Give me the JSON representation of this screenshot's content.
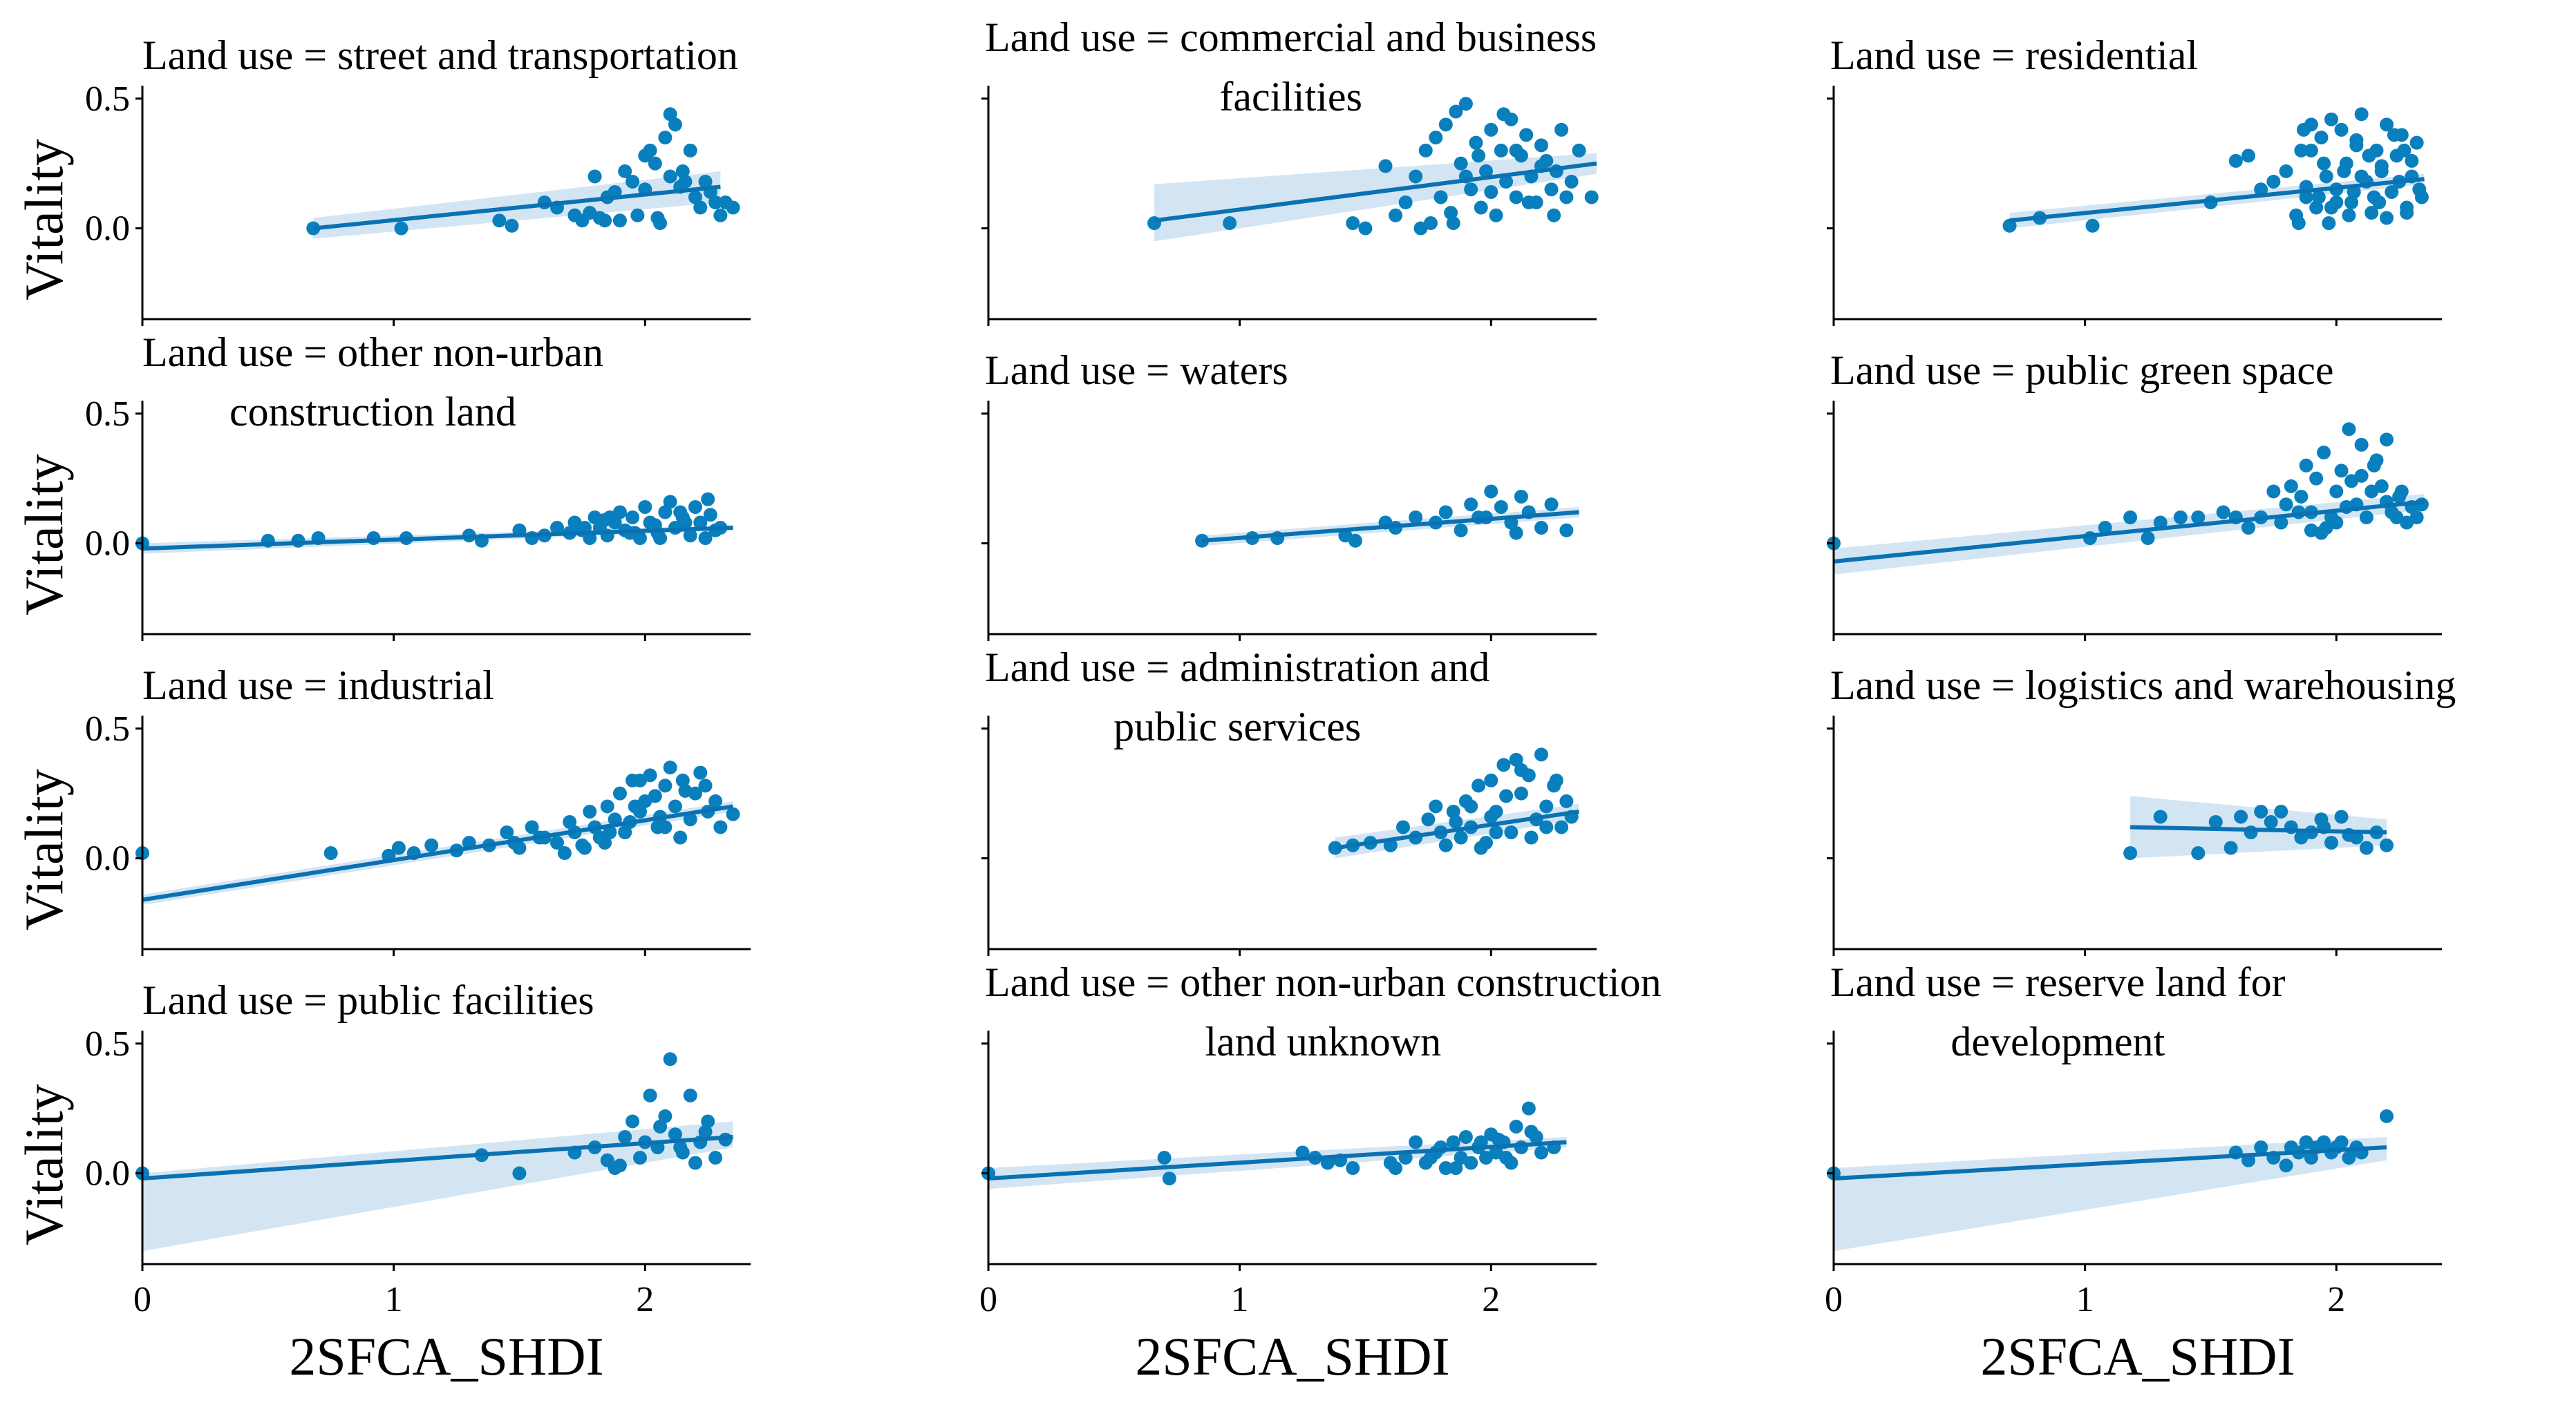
{
  "figure": {
    "xlabel": "2SFCA_SHDI",
    "ylabel": "Vitality",
    "x_ticks": [
      0,
      1,
      2
    ],
    "x_tick_labels": [
      "0",
      "1",
      "2"
    ],
    "y_ticks": [
      0.5,
      0.0
    ],
    "y_tick_labels": [
      "0.5",
      "0.0"
    ],
    "colors": {
      "points": "#0a7fbe",
      "line": "#0a72b3",
      "band": "#a7cbe8"
    }
  },
  "chart_data": [
    {
      "type": "scatter",
      "title_lines": [
        "Land use = street and transportation"
      ],
      "xlim": [
        0,
        2.42
      ],
      "ylim": [
        -0.35,
        0.55
      ],
      "fit": {
        "x0": 0.68,
        "y0": 0.0,
        "x1": 2.3,
        "y1": 0.16
      },
      "band": {
        "lo0": -0.04,
        "hi0": 0.04,
        "lo1": 0.1,
        "hi1": 0.22
      },
      "x": [
        0.68,
        1.03,
        1.42,
        1.47,
        1.6,
        1.65,
        1.72,
        1.75,
        1.8,
        1.82,
        1.85,
        1.88,
        1.9,
        1.92,
        1.95,
        1.97,
        2.0,
        2.02,
        2.04,
        2.06,
        2.08,
        2.1,
        2.12,
        2.14,
        2.16,
        2.18,
        2.2,
        2.22,
        2.24,
        2.26,
        2.28,
        2.3,
        2.32,
        2.35,
        1.78,
        1.84,
        2.0,
        2.1,
        2.15,
        2.05
      ],
      "y": [
        0.0,
        0.0,
        0.03,
        0.01,
        0.1,
        0.08,
        0.05,
        0.03,
        0.2,
        0.04,
        0.12,
        0.14,
        0.03,
        0.22,
        0.18,
        0.05,
        0.28,
        0.3,
        0.25,
        0.02,
        0.35,
        0.44,
        0.4,
        0.16,
        0.18,
        0.3,
        0.12,
        0.08,
        0.18,
        0.14,
        0.1,
        0.05,
        0.1,
        0.08,
        0.06,
        0.03,
        0.15,
        0.2,
        0.22,
        0.04
      ]
    },
    {
      "type": "scatter",
      "title_lines": [
        "Land use = commercial and business",
        "facilities"
      ],
      "xlim": [
        0,
        2.42
      ],
      "ylim": [
        -0.35,
        0.55
      ],
      "fit": {
        "x0": 0.66,
        "y0": 0.03,
        "x1": 2.42,
        "y1": 0.25
      },
      "band": {
        "lo0": -0.05,
        "hi0": 0.17,
        "lo1": 0.21,
        "hi1": 0.29
      },
      "x": [
        0.66,
        0.96,
        1.45,
        1.5,
        1.58,
        1.62,
        1.66,
        1.7,
        1.74,
        1.76,
        1.78,
        1.8,
        1.82,
        1.84,
        1.86,
        1.88,
        1.9,
        1.92,
        1.94,
        1.96,
        1.98,
        2.0,
        2.02,
        2.04,
        2.06,
        2.08,
        2.1,
        2.12,
        2.14,
        2.16,
        2.18,
        2.2,
        2.22,
        2.24,
        2.26,
        2.28,
        2.3,
        2.32,
        2.35,
        2.4,
        1.85,
        1.95,
        2.05,
        2.15,
        2.25,
        1.9,
        2.0,
        2.1,
        2.2,
        1.72
      ],
      "y": [
        0.02,
        0.02,
        0.02,
        0.0,
        0.24,
        0.05,
        0.1,
        0.2,
        0.3,
        0.02,
        0.35,
        0.12,
        0.4,
        0.06,
        0.45,
        0.25,
        0.48,
        0.15,
        0.33,
        0.08,
        0.22,
        0.38,
        0.05,
        0.3,
        0.18,
        0.42,
        0.12,
        0.28,
        0.36,
        0.2,
        0.1,
        0.32,
        0.26,
        0.15,
        0.22,
        0.38,
        0.12,
        0.18,
        0.3,
        0.12,
        0.02,
        0.28,
        0.44,
        0.1,
        0.05,
        0.2,
        0.14,
        0.3,
        0.24,
        0.0
      ]
    },
    {
      "type": "scatter",
      "title_lines": [
        "Land use = residential"
      ],
      "xlim": [
        0,
        2.42
      ],
      "ylim": [
        -0.35,
        0.55
      ],
      "fit": {
        "x0": 0.7,
        "y0": 0.03,
        "x1": 2.35,
        "y1": 0.19
      },
      "band": {
        "lo0": 0.0,
        "hi0": 0.06,
        "lo1": 0.17,
        "hi1": 0.21
      },
      "x": [
        0.7,
        0.82,
        1.03,
        1.5,
        1.6,
        1.65,
        1.7,
        1.75,
        1.8,
        1.84,
        1.86,
        1.88,
        1.9,
        1.92,
        1.94,
        1.96,
        1.98,
        2.0,
        2.02,
        2.04,
        2.06,
        2.08,
        2.1,
        2.12,
        2.14,
        2.16,
        2.18,
        2.2,
        2.22,
        2.24,
        2.26,
        2.28,
        2.3,
        2.32,
        2.34,
        1.85,
        1.95,
        2.05,
        2.15,
        2.25,
        1.9,
        2.0,
        2.1,
        2.2,
        2.3,
        1.88,
        1.98,
        2.08,
        2.18,
        2.28,
        1.93,
        2.03,
        2.13,
        2.23,
        2.33,
        1.87,
        1.97,
        2.07,
        2.17,
        2.27
      ],
      "y": [
        0.01,
        0.04,
        0.01,
        0.1,
        0.26,
        0.28,
        0.15,
        0.18,
        0.22,
        0.05,
        0.3,
        0.12,
        0.4,
        0.08,
        0.35,
        0.2,
        0.42,
        0.15,
        0.38,
        0.25,
        0.1,
        0.32,
        0.44,
        0.18,
        0.06,
        0.3,
        0.22,
        0.4,
        0.14,
        0.28,
        0.36,
        0.08,
        0.2,
        0.33,
        0.12,
        0.02,
        0.25,
        0.05,
        0.12,
        0.18,
        0.3,
        0.1,
        0.2,
        0.04,
        0.26,
        0.16,
        0.08,
        0.34,
        0.24,
        0.06,
        0.12,
        0.22,
        0.28,
        0.36,
        0.15,
        0.38,
        0.02,
        0.14,
        0.1,
        0.3
      ]
    },
    {
      "type": "scatter",
      "title_lines": [
        "Land use = other non-urban",
        "construction land"
      ],
      "xlim": [
        0,
        2.42
      ],
      "ylim": [
        -0.35,
        0.55
      ],
      "fit": {
        "x0": 0.0,
        "y0": -0.02,
        "x1": 2.35,
        "y1": 0.06
      },
      "band": {
        "lo0": -0.04,
        "hi0": 0.0,
        "lo1": 0.05,
        "hi1": 0.07
      },
      "x": [
        0.0,
        0.5,
        0.62,
        0.7,
        0.92,
        1.05,
        1.3,
        1.35,
        1.5,
        1.55,
        1.6,
        1.65,
        1.7,
        1.72,
        1.75,
        1.78,
        1.8,
        1.82,
        1.85,
        1.88,
        1.9,
        1.92,
        1.95,
        1.98,
        2.0,
        2.02,
        2.05,
        2.08,
        2.1,
        2.12,
        2.15,
        2.18,
        2.2,
        2.22,
        2.25,
        2.28,
        2.3,
        1.84,
        1.94,
        2.04,
        2.14,
        2.24,
        1.76,
        1.86,
        1.96,
        2.06,
        2.16,
        2.26
      ],
      "y": [
        0.0,
        0.01,
        0.01,
        0.02,
        0.02,
        0.02,
        0.03,
        0.01,
        0.05,
        0.02,
        0.03,
        0.06,
        0.04,
        0.08,
        0.05,
        0.02,
        0.1,
        0.06,
        0.03,
        0.08,
        0.12,
        0.05,
        0.1,
        0.02,
        0.14,
        0.08,
        0.04,
        0.12,
        0.16,
        0.06,
        0.1,
        0.03,
        0.14,
        0.08,
        0.17,
        0.05,
        0.06,
        0.09,
        0.04,
        0.07,
        0.12,
        0.02,
        0.06,
        0.1,
        0.04,
        0.02,
        0.08,
        0.11
      ]
    },
    {
      "type": "scatter",
      "title_lines": [
        "Land use = waters"
      ],
      "xlim": [
        0,
        2.42
      ],
      "ylim": [
        -0.35,
        0.55
      ],
      "fit": {
        "x0": 0.85,
        "y0": 0.01,
        "x1": 2.35,
        "y1": 0.12
      },
      "band": {
        "lo0": -0.01,
        "hi0": 0.03,
        "lo1": 0.1,
        "hi1": 0.14
      },
      "x": [
        0.85,
        1.05,
        1.15,
        1.42,
        1.46,
        1.58,
        1.62,
        1.7,
        1.78,
        1.82,
        1.88,
        1.92,
        1.95,
        2.0,
        2.04,
        2.08,
        2.12,
        2.15,
        2.2,
        2.24,
        2.3,
        1.98,
        2.1
      ],
      "y": [
        0.01,
        0.02,
        0.02,
        0.03,
        0.01,
        0.08,
        0.06,
        0.1,
        0.08,
        0.12,
        0.05,
        0.15,
        0.1,
        0.2,
        0.14,
        0.08,
        0.18,
        0.12,
        0.06,
        0.15,
        0.05,
        0.1,
        0.04
      ]
    },
    {
      "type": "scatter",
      "title_lines": [
        "Land use = public green space"
      ],
      "xlim": [
        0,
        2.42
      ],
      "ylim": [
        -0.35,
        0.55
      ],
      "fit": {
        "x0": 0.0,
        "y0": -0.07,
        "x1": 2.35,
        "y1": 0.16
      },
      "band": {
        "lo0": -0.12,
        "hi0": -0.02,
        "lo1": 0.13,
        "hi1": 0.19
      },
      "x": [
        0.0,
        1.02,
        1.08,
        1.18,
        1.25,
        1.3,
        1.38,
        1.45,
        1.55,
        1.6,
        1.65,
        1.7,
        1.75,
        1.78,
        1.8,
        1.82,
        1.85,
        1.88,
        1.9,
        1.92,
        1.95,
        1.98,
        2.0,
        2.02,
        2.05,
        2.08,
        2.1,
        2.12,
        2.15,
        2.18,
        2.2,
        2.22,
        2.25,
        2.28,
        2.3,
        2.32,
        1.86,
        1.96,
        2.06,
        2.16,
        2.26,
        1.9,
        2.0,
        2.1,
        2.2,
        1.94,
        2.04,
        2.14,
        2.24,
        2.34
      ],
      "y": [
        0.0,
        0.02,
        0.06,
        0.1,
        0.02,
        0.08,
        0.1,
        0.1,
        0.12,
        0.1,
        0.06,
        0.1,
        0.2,
        0.08,
        0.15,
        0.22,
        0.12,
        0.3,
        0.05,
        0.25,
        0.35,
        0.1,
        0.2,
        0.28,
        0.44,
        0.15,
        0.38,
        0.1,
        0.3,
        0.22,
        0.4,
        0.12,
        0.18,
        0.08,
        0.14,
        0.1,
        0.18,
        0.06,
        0.24,
        0.32,
        0.2,
        0.12,
        0.08,
        0.26,
        0.16,
        0.04,
        0.14,
        0.2,
        0.1,
        0.15
      ]
    },
    {
      "type": "scatter",
      "title_lines": [
        "Land use = industrial"
      ],
      "xlim": [
        0,
        2.42
      ],
      "ylim": [
        -0.35,
        0.55
      ],
      "fit": {
        "x0": 0.0,
        "y0": -0.16,
        "x1": 2.35,
        "y1": 0.2
      },
      "band": {
        "lo0": -0.18,
        "hi0": -0.14,
        "lo1": 0.18,
        "hi1": 0.22
      },
      "x": [
        0.0,
        0.75,
        0.98,
        1.02,
        1.08,
        1.15,
        1.25,
        1.3,
        1.38,
        1.45,
        1.5,
        1.55,
        1.6,
        1.65,
        1.7,
        1.72,
        1.75,
        1.78,
        1.8,
        1.82,
        1.85,
        1.88,
        1.9,
        1.92,
        1.95,
        1.98,
        2.0,
        2.02,
        2.05,
        2.08,
        2.1,
        2.12,
        2.15,
        2.18,
        2.2,
        2.22,
        2.25,
        2.28,
        2.3,
        2.35,
        1.84,
        1.94,
        2.04,
        2.14,
        2.24,
        1.76,
        1.86,
        1.96,
        2.06,
        2.16,
        1.68,
        1.58,
        1.48,
        1.98,
        2.08
      ],
      "y": [
        0.02,
        0.02,
        0.01,
        0.04,
        0.02,
        0.05,
        0.03,
        0.06,
        0.05,
        0.1,
        0.04,
        0.12,
        0.08,
        0.06,
        0.14,
        0.1,
        0.05,
        0.18,
        0.12,
        0.08,
        0.2,
        0.15,
        0.25,
        0.1,
        0.3,
        0.18,
        0.22,
        0.32,
        0.12,
        0.28,
        0.35,
        0.2,
        0.3,
        0.15,
        0.25,
        0.33,
        0.18,
        0.22,
        0.12,
        0.17,
        0.06,
        0.14,
        0.24,
        0.08,
        0.28,
        0.04,
        0.1,
        0.2,
        0.16,
        0.26,
        0.02,
        0.08,
        0.06,
        0.3,
        0.12
      ]
    },
    {
      "type": "scatter",
      "title_lines": [
        "Land use = administration and",
        "public services"
      ],
      "xlim": [
        0,
        2.42
      ],
      "ylim": [
        -0.35,
        0.55
      ],
      "fit": {
        "x0": 1.38,
        "y0": 0.04,
        "x1": 2.35,
        "y1": 0.18
      },
      "band": {
        "lo0": 0.0,
        "hi0": 0.08,
        "lo1": 0.15,
        "hi1": 0.21
      },
      "x": [
        1.38,
        1.45,
        1.52,
        1.6,
        1.65,
        1.7,
        1.75,
        1.8,
        1.82,
        1.85,
        1.88,
        1.9,
        1.92,
        1.95,
        1.98,
        2.0,
        2.02,
        2.05,
        2.08,
        2.1,
        2.12,
        2.15,
        2.18,
        2.2,
        2.22,
        2.25,
        2.28,
        2.3,
        2.32,
        1.86,
        1.96,
        2.06,
        2.16,
        2.26,
        1.92,
        2.02,
        2.12,
        2.22,
        1.78,
        2.0
      ],
      "y": [
        0.04,
        0.05,
        0.06,
        0.05,
        0.12,
        0.08,
        0.15,
        0.1,
        0.05,
        0.18,
        0.08,
        0.22,
        0.12,
        0.28,
        0.06,
        0.3,
        0.18,
        0.36,
        0.1,
        0.38,
        0.25,
        0.32,
        0.15,
        0.4,
        0.2,
        0.28,
        0.12,
        0.22,
        0.16,
        0.14,
        0.04,
        0.24,
        0.08,
        0.3,
        0.2,
        0.1,
        0.34,
        0.12,
        0.2,
        0.16
      ]
    },
    {
      "type": "scatter",
      "title_lines": [
        "Land use = logistics and warehousing"
      ],
      "xlim": [
        0,
        2.42
      ],
      "ylim": [
        -0.35,
        0.55
      ],
      "fit": {
        "x0": 1.18,
        "y0": 0.12,
        "x1": 2.2,
        "y1": 0.1
      },
      "band": {
        "lo0": 0.0,
        "hi0": 0.24,
        "lo1": 0.05,
        "hi1": 0.15
      },
      "x": [
        1.18,
        1.3,
        1.45,
        1.52,
        1.58,
        1.62,
        1.66,
        1.7,
        1.74,
        1.78,
        1.82,
        1.86,
        1.9,
        1.94,
        1.98,
        2.02,
        2.08,
        2.12,
        2.16,
        2.2,
        1.95,
        2.05
      ],
      "y": [
        0.02,
        0.16,
        0.02,
        0.14,
        0.04,
        0.16,
        0.1,
        0.18,
        0.14,
        0.18,
        0.12,
        0.08,
        0.1,
        0.15,
        0.06,
        0.16,
        0.08,
        0.04,
        0.1,
        0.05,
        0.12,
        0.09
      ]
    },
    {
      "type": "scatter",
      "title_lines": [
        "Land use = public facilities"
      ],
      "xlim": [
        0,
        2.42
      ],
      "ylim": [
        -0.35,
        0.55
      ],
      "fit": {
        "x0": 0.0,
        "y0": -0.02,
        "x1": 2.35,
        "y1": 0.14
      },
      "band": {
        "lo0": -0.3,
        "hi0": 0.0,
        "lo1": 0.1,
        "hi1": 0.2
      },
      "x": [
        0.0,
        1.35,
        1.5,
        1.72,
        1.8,
        1.85,
        1.88,
        1.92,
        1.95,
        1.98,
        2.0,
        2.02,
        2.05,
        2.08,
        2.1,
        2.12,
        2.15,
        2.18,
        2.2,
        2.22,
        2.25,
        2.28,
        2.32,
        1.9,
        2.06,
        2.14,
        2.24
      ],
      "y": [
        0.0,
        0.07,
        0.0,
        0.08,
        0.1,
        0.05,
        0.02,
        0.14,
        0.2,
        0.06,
        0.12,
        0.3,
        0.1,
        0.22,
        0.44,
        0.15,
        0.08,
        0.3,
        0.04,
        0.12,
        0.2,
        0.06,
        0.13,
        0.03,
        0.18,
        0.1,
        0.16
      ]
    },
    {
      "type": "scatter",
      "title_lines": [
        "Land use = other non-urban construction",
        "land unknown"
      ],
      "xlim": [
        0,
        2.42
      ],
      "ylim": [
        -0.35,
        0.55
      ],
      "fit": {
        "x0": 0.0,
        "y0": -0.02,
        "x1": 2.3,
        "y1": 0.12
      },
      "band": {
        "lo0": -0.06,
        "hi0": 0.02,
        "lo1": 0.1,
        "hi1": 0.14
      },
      "x": [
        0.0,
        0.7,
        0.72,
        1.25,
        1.3,
        1.35,
        1.4,
        1.45,
        1.6,
        1.62,
        1.66,
        1.7,
        1.74,
        1.78,
        1.8,
        1.82,
        1.85,
        1.88,
        1.9,
        1.92,
        1.95,
        1.98,
        2.0,
        2.02,
        2.05,
        2.08,
        2.1,
        2.12,
        2.15,
        2.18,
        2.2,
        2.25,
        1.86,
        1.96,
        2.06,
        2.16,
        1.76,
        2.03
      ],
      "y": [
        0.0,
        0.06,
        -0.02,
        0.08,
        0.06,
        0.04,
        0.05,
        0.02,
        0.04,
        0.02,
        0.06,
        0.12,
        0.04,
        0.08,
        0.1,
        0.02,
        0.12,
        0.06,
        0.14,
        0.04,
        0.1,
        0.06,
        0.15,
        0.08,
        0.12,
        0.04,
        0.18,
        0.1,
        0.25,
        0.14,
        0.08,
        0.1,
        0.02,
        0.12,
        0.06,
        0.16,
        0.06,
        0.13
      ]
    },
    {
      "type": "scatter",
      "title_lines": [
        "Land use = reserve land for",
        "development"
      ],
      "xlim": [
        0,
        2.42
      ],
      "ylim": [
        -0.35,
        0.55
      ],
      "fit": {
        "x0": 0.0,
        "y0": -0.02,
        "x1": 2.2,
        "y1": 0.1
      },
      "band": {
        "lo0": -0.3,
        "hi0": 0.02,
        "lo1": 0.05,
        "hi1": 0.14
      },
      "x": [
        0.0,
        1.6,
        1.65,
        1.7,
        1.75,
        1.8,
        1.82,
        1.85,
        1.88,
        1.9,
        1.92,
        1.95,
        1.98,
        2.0,
        2.02,
        2.05,
        2.08,
        2.1,
        2.2
      ],
      "y": [
        0.0,
        0.08,
        0.05,
        0.1,
        0.06,
        0.03,
        0.1,
        0.08,
        0.12,
        0.06,
        0.1,
        0.12,
        0.08,
        0.1,
        0.12,
        0.06,
        0.1,
        0.08,
        0.22
      ]
    }
  ]
}
